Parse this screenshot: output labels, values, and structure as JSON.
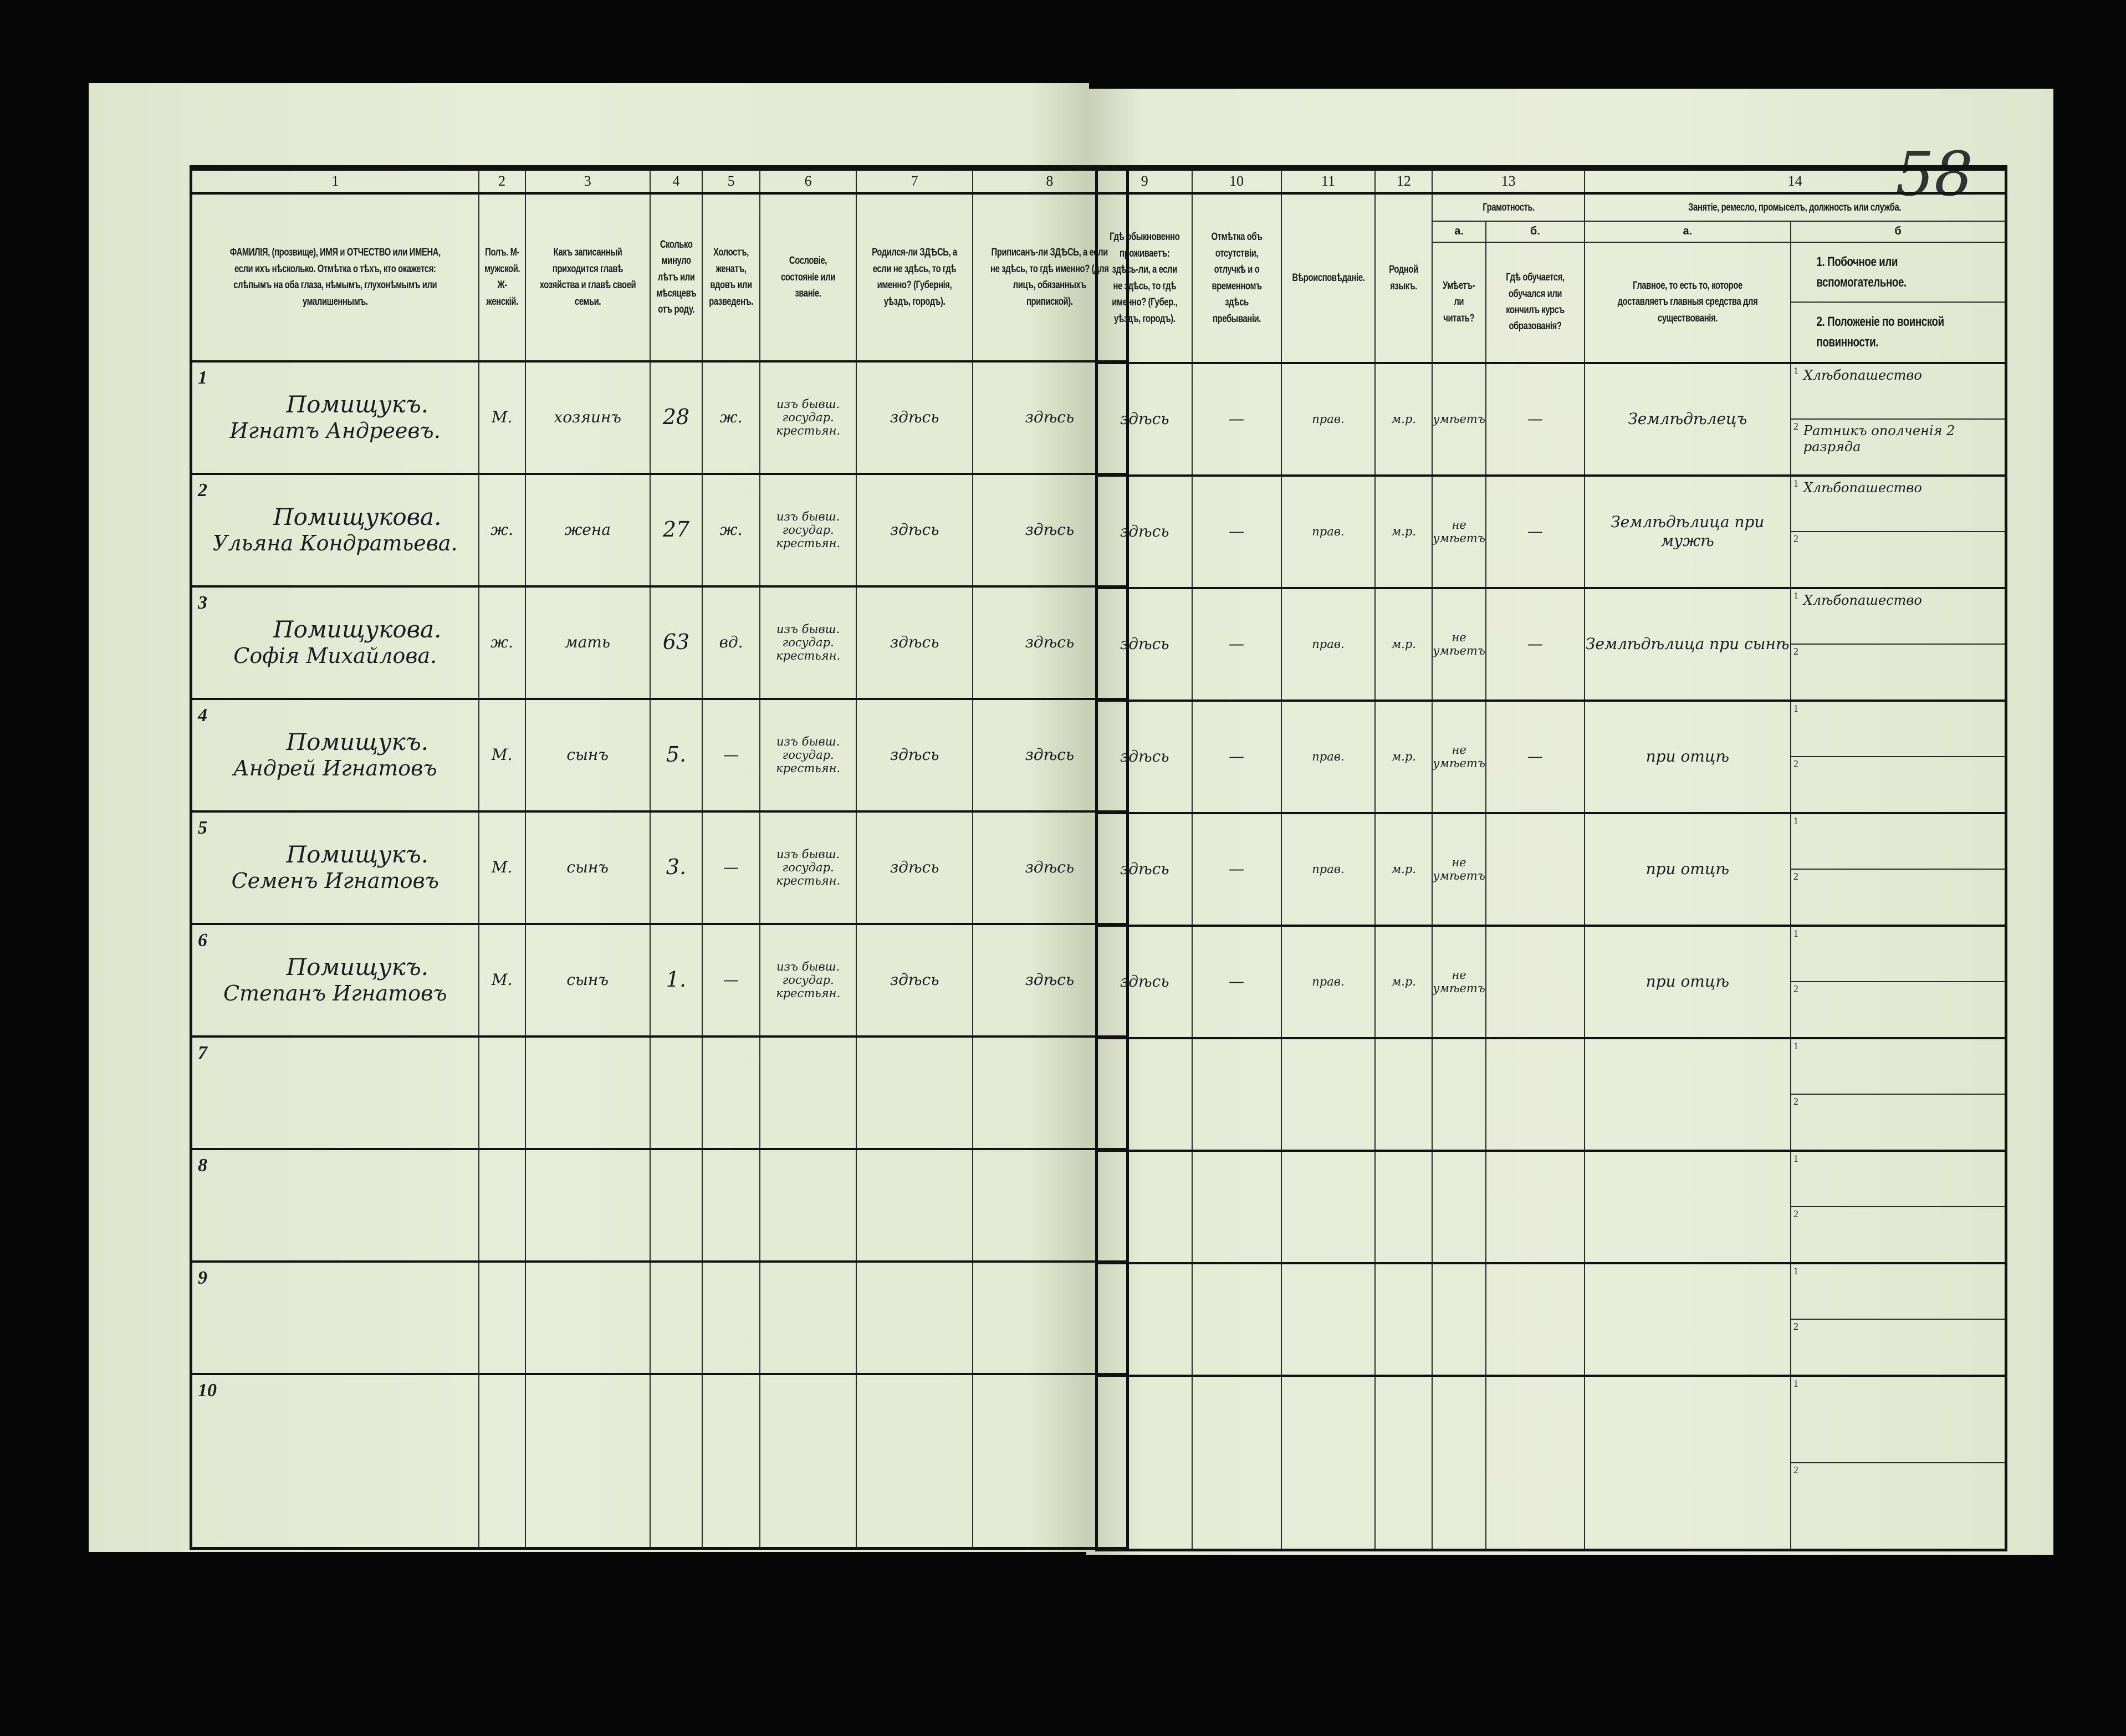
{
  "sheet_number": "58",
  "left_headers": {
    "numbers": [
      "1",
      "2",
      "3",
      "4",
      "5",
      "6",
      "7",
      "8"
    ],
    "titles": [
      "ФАМИЛІЯ, (прозвище), ИМЯ и ОТЧЕСТВО или ИМЕНА, если ихъ нѣсколько. Отмѣтка о тѣхъ, кто окажется: слѣпымъ на оба глаза, нѣмымъ, глухонѣмымъ или умалишеннымъ.",
      "Полъ. М-мужской. Ж-женскій.",
      "Какъ записанный приходится главѣ хозяйства и главѣ своей семьи.",
      "Сколько минуло лѣтъ или мѣсяцевъ отъ роду.",
      "Холостъ, женатъ, вдовъ или разведенъ.",
      "Сословіе, состояніе или званіе.",
      "Родился-ли ЗДѢСЬ, а если не здѣсь, то гдѣ именно? (Губернія, уѣздъ, городъ).",
      "Приписанъ-ли ЗДѢСЬ, а если не здѣсь, то гдѣ именно? (для лицъ, обязанныхъ припиской)."
    ]
  },
  "right_headers": {
    "numbers": [
      "9",
      "10",
      "11",
      "12",
      "13",
      "14"
    ],
    "titles": [
      "Гдѣ обыкновенно проживаетъ: здѣсь-ли, а если не здѣсь, то гдѣ именно? (Губер., уѣздъ, городъ).",
      "Отмѣтка объ отсутствіи, отлучкѣ и о временномъ здѣсь пребываніи.",
      "Вѣроисповѣданіе.",
      "Родной языкъ."
    ],
    "group13": "Грамотность.",
    "group14": "Занятіе, ремесло, промыселъ, должность или служба.",
    "sub13a": "а.",
    "sub13b": "б.",
    "sub14a": "а.",
    "sub14b": "б",
    "t13a": "Умѣетъ-ли читать?",
    "t13b": "Гдѣ обучается, обучался или кончилъ курсъ образованія?",
    "t14a": "Главное, то есть то, которое доставляетъ главныя средства для существованія.",
    "t14b_1": "1. Побочное или вспомогательное.",
    "t14b_2": "2. Положеніе по воинской повинности."
  },
  "rows": [
    {
      "n": "1",
      "surname": "Помищукъ.",
      "given": "Игнатъ Андреевъ.",
      "sex": "М.",
      "relation": "хозяинъ",
      "age": "28",
      "marital": "ж.",
      "estate": "изъ бывш. государ. крестьян.",
      "born": "здѣсь",
      "registered": "здѣсь",
      "residence": "здѣсь",
      "absence": "—",
      "religion": "прав.",
      "language": "м.р.",
      "reads": "умѣетъ",
      "education": "—",
      "occupation": "Землѣдѣлецъ",
      "secondary": "Хлѣбопашество",
      "military": "Ратникъ ополченія 2 разряда"
    },
    {
      "n": "2",
      "surname": "Помищукова.",
      "given": "Ульяна Кондратьева.",
      "sex": "ж.",
      "relation": "жена",
      "age": "27",
      "marital": "ж.",
      "estate": "изъ бывш. государ. крестьян.",
      "born": "здѣсь",
      "registered": "здѣсь",
      "residence": "здѣсь",
      "absence": "—",
      "religion": "прав.",
      "language": "м.р.",
      "reads": "не умѣетъ",
      "education": "—",
      "occupation": "Землѣдѣлица при мужѣ",
      "secondary": "Хлѣбопашество",
      "military": ""
    },
    {
      "n": "3",
      "surname": "Помищукова.",
      "given": "Софія Михайлова.",
      "sex": "ж.",
      "relation": "мать",
      "age": "63",
      "marital": "вд.",
      "estate": "изъ бывш. государ. крестьян.",
      "born": "здѣсь",
      "registered": "здѣсь",
      "residence": "здѣсь",
      "absence": "—",
      "religion": "прав.",
      "language": "м.р.",
      "reads": "не умѣетъ",
      "education": "—",
      "occupation": "Землѣдѣлица при сынѣ",
      "secondary": "Хлѣбопашество",
      "military": ""
    },
    {
      "n": "4",
      "surname": "Помищукъ.",
      "given": "Андрей Игнатовъ",
      "sex": "М.",
      "relation": "сынъ",
      "age": "5.",
      "marital": "—",
      "estate": "изъ бывш. государ. крестьян.",
      "born": "здѣсь",
      "registered": "здѣсь",
      "residence": "здѣсь",
      "absence": "—",
      "religion": "прав.",
      "language": "м.р.",
      "reads": "не умѣетъ",
      "education": "—",
      "occupation": "при отцѣ",
      "secondary": "",
      "military": ""
    },
    {
      "n": "5",
      "surname": "Помищукъ.",
      "given": "Семенъ Игнатовъ",
      "sex": "М.",
      "relation": "сынъ",
      "age": "3.",
      "marital": "—",
      "estate": "изъ бывш. государ. крестьян.",
      "born": "здѣсь",
      "registered": "здѣсь",
      "residence": "здѣсь",
      "absence": "—",
      "religion": "прав.",
      "language": "м.р.",
      "reads": "не умѣетъ",
      "education": "",
      "occupation": "при отцѣ",
      "secondary": "",
      "military": ""
    },
    {
      "n": "6",
      "surname": "Помищукъ.",
      "given": "Степанъ Игнатовъ",
      "sex": "М.",
      "relation": "сынъ",
      "age": "1.",
      "marital": "—",
      "estate": "изъ бывш. государ. крестьян.",
      "born": "здѣсь",
      "registered": "здѣсь",
      "residence": "здѣсь",
      "absence": "—",
      "religion": "прав.",
      "language": "м.р.",
      "reads": "не умѣетъ",
      "education": "",
      "occupation": "при отцѣ",
      "secondary": "",
      "military": ""
    },
    {
      "n": "7"
    },
    {
      "n": "8"
    },
    {
      "n": "9"
    },
    {
      "n": "10"
    }
  ],
  "subline_labels": [
    "1",
    "2"
  ]
}
